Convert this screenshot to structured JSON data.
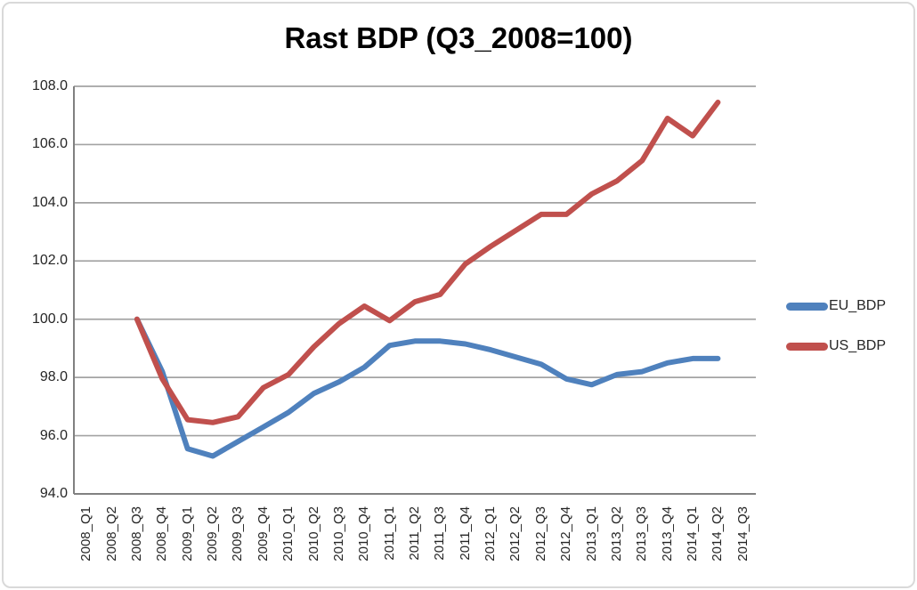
{
  "chart": {
    "title": "Rast BDP (Q3_2008=100)"
  },
  "chart_data": {
    "type": "line",
    "title": "Rast BDP (Q3_2008=100)",
    "xlabel": "",
    "ylabel": "",
    "ylim": [
      94,
      108
    ],
    "ytick_step": 2,
    "y_tick_labels": [
      "108.0",
      "106.0",
      "104.0",
      "102.0",
      "100.0",
      "98.0",
      "96.0",
      "94.0"
    ],
    "grid": true,
    "legend_position": "right",
    "categories": [
      "2008_Q1",
      "2008_Q2",
      "2008_Q3",
      "2008_Q4",
      "2009_Q1",
      "2009_Q2",
      "2009_Q3",
      "2009_Q4",
      "2010_Q1",
      "2010_Q2",
      "2010_Q3",
      "2010_Q4",
      "2011_Q1",
      "2011_Q2",
      "2011_Q3",
      "2011_Q4",
      "2012_Q1",
      "2012_Q2",
      "2012_Q3",
      "2012_Q4",
      "2013_Q1",
      "2013_Q2",
      "2013_Q3",
      "2013_Q4",
      "2014_Q1",
      "2014_Q2",
      "2014_Q3"
    ],
    "series": [
      {
        "name": "EU_BDP",
        "color": "#4F81BD",
        "start_index": 2,
        "values": [
          100.0,
          98.2,
          95.55,
          95.3,
          95.8,
          96.3,
          96.8,
          97.45,
          97.85,
          98.35,
          99.1,
          99.25,
          99.25,
          99.15,
          98.95,
          98.7,
          98.45,
          97.95,
          97.75,
          98.1,
          98.2,
          98.5,
          98.65,
          98.65
        ]
      },
      {
        "name": "US_BDP",
        "color": "#C0504D",
        "start_index": 2,
        "values": [
          100.0,
          97.95,
          96.55,
          96.45,
          96.65,
          97.65,
          98.1,
          99.05,
          99.85,
          100.45,
          99.95,
          100.6,
          100.85,
          101.9,
          102.5,
          103.05,
          103.6,
          103.6,
          104.3,
          104.75,
          105.45,
          106.9,
          106.3,
          107.45
        ]
      }
    ],
    "colors": {
      "gridline": "#A3A3A3",
      "axis": "#808080",
      "figure_border": "#D9D9D9"
    }
  }
}
